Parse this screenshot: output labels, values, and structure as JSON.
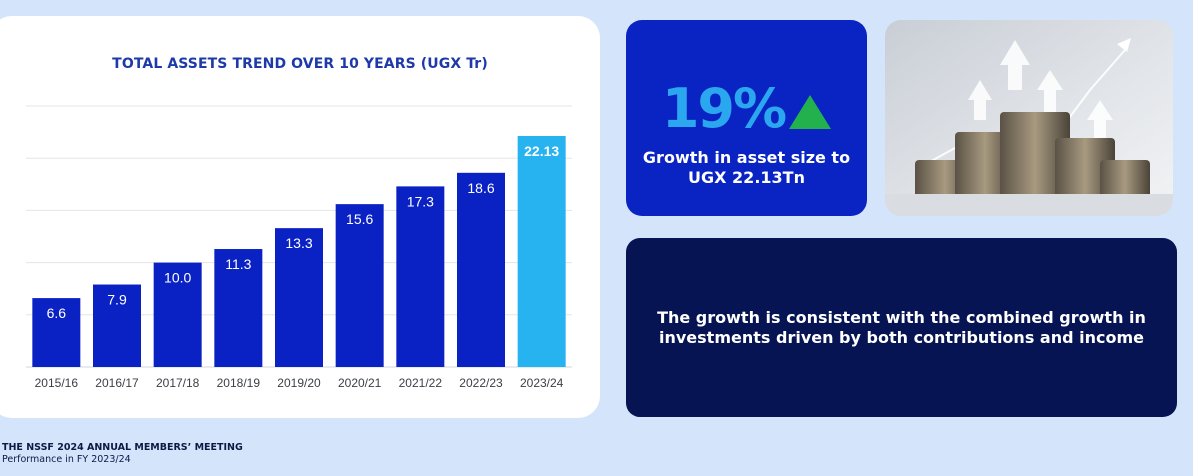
{
  "chart_data": {
    "type": "bar",
    "title": "TOTAL ASSETS TREND OVER 10 YEARS (UGX Tr)",
    "categories": [
      "2015/16",
      "2016/17",
      "2017/18",
      "2018/19",
      "2019/20",
      "2020/21",
      "2021/22",
      "2022/23",
      "2023/24"
    ],
    "values": [
      6.6,
      7.9,
      10.0,
      11.3,
      13.3,
      15.6,
      17.3,
      18.6,
      22.13
    ],
    "labels": [
      "6.6",
      "7.9",
      "10.0",
      "11.3",
      "13.3",
      "15.6",
      "17.3",
      "18.6",
      "22.13"
    ],
    "ylim": [
      0,
      25
    ],
    "grid": true,
    "colors": {
      "bar": "#0a22c4",
      "highlight": "#27b2f0"
    }
  },
  "stat": {
    "value": "19%",
    "description": "Growth in asset size to UGX 22.13Tn",
    "arrow_icon": "up-triangle-icon",
    "arrow_color": "#22b14c"
  },
  "note": {
    "text": "The growth is consistent with the combined growth in investments driven by both contributions and income"
  },
  "footer": {
    "title": "THE NSSF 2024 ANNUAL MEMBERS’ MEETING",
    "subtitle": "Performance in FY 2023/24"
  }
}
